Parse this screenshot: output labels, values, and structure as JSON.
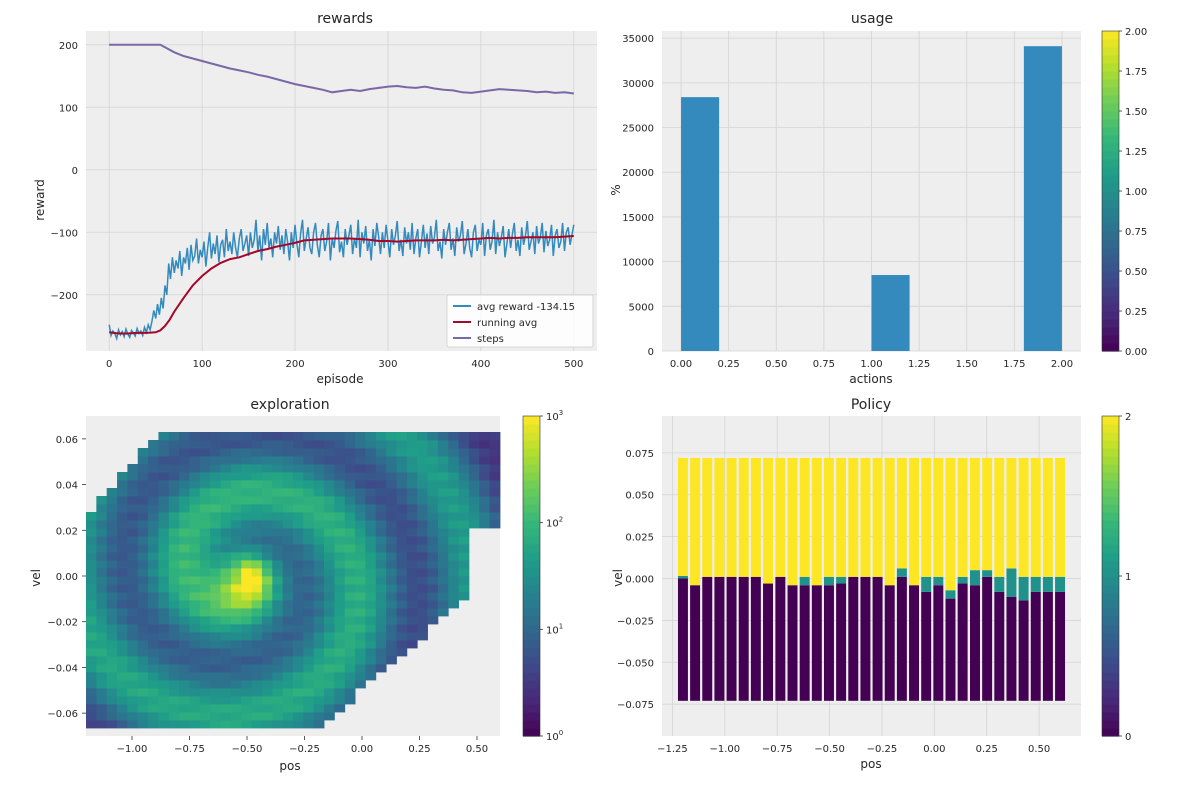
{
  "chart_data": [
    {
      "type": "line",
      "title": "rewards",
      "xlabel": "episode",
      "ylabel": "reward",
      "xlim": [
        -25,
        525
      ],
      "ylim": [
        -290,
        222
      ],
      "xticks": [
        0,
        100,
        200,
        300,
        400,
        500
      ],
      "yticks": [
        -200,
        -100,
        0,
        100,
        200
      ],
      "grid": true,
      "legend_position": "lower-right",
      "colors": {
        "avg_reward": "#348abd",
        "running_avg": "#a60628",
        "steps": "#7a68a6"
      },
      "series": [
        {
          "name": "avg reward -134.15",
          "key": "avg_reward",
          "x": [
            0,
            2,
            4,
            6,
            8,
            10,
            12,
            14,
            16,
            18,
            20,
            22,
            24,
            26,
            28,
            30,
            32,
            34,
            36,
            38,
            40,
            42,
            44,
            46,
            48,
            50,
            52,
            54,
            56,
            58,
            60,
            62,
            64,
            66,
            68,
            70,
            72,
            74,
            76,
            78,
            80,
            82,
            84,
            86,
            88,
            90,
            92,
            94,
            96,
            98,
            100,
            102,
            104,
            106,
            108,
            110,
            112,
            114,
            116,
            118,
            120,
            122,
            124,
            126,
            128,
            130,
            132,
            134,
            136,
            138,
            140,
            142,
            144,
            146,
            148,
            150,
            152,
            154,
            156,
            158,
            160,
            162,
            164,
            166,
            168,
            170,
            172,
            174,
            176,
            178,
            180,
            182,
            184,
            186,
            188,
            190,
            192,
            194,
            196,
            198,
            200,
            202,
            204,
            206,
            208,
            210,
            212,
            214,
            216,
            218,
            220,
            222,
            224,
            226,
            228,
            230,
            232,
            234,
            236,
            238,
            240,
            242,
            244,
            246,
            248,
            250,
            252,
            254,
            256,
            258,
            260,
            262,
            264,
            266,
            268,
            270,
            272,
            274,
            276,
            278,
            280,
            282,
            284,
            286,
            288,
            290,
            292,
            294,
            296,
            298,
            300,
            302,
            304,
            306,
            308,
            310,
            312,
            314,
            316,
            318,
            320,
            322,
            324,
            326,
            328,
            330,
            332,
            334,
            336,
            338,
            340,
            342,
            344,
            346,
            348,
            350,
            352,
            354,
            356,
            358,
            360,
            362,
            364,
            366,
            368,
            370,
            372,
            374,
            376,
            378,
            380,
            382,
            384,
            386,
            388,
            390,
            392,
            394,
            396,
            398,
            400,
            402,
            404,
            406,
            408,
            410,
            412,
            414,
            416,
            418,
            420,
            422,
            424,
            426,
            428,
            430,
            432,
            434,
            436,
            438,
            440,
            442,
            444,
            446,
            448,
            450,
            452,
            454,
            456,
            458,
            460,
            462,
            464,
            466,
            468,
            470,
            472,
            474,
            476,
            478,
            480,
            482,
            484,
            486,
            488,
            490,
            492,
            494,
            496,
            498,
            500
          ],
          "y": [
            -248,
            -265,
            -258,
            -262,
            -270,
            -256,
            -264,
            -259,
            -267,
            -255,
            -263,
            -268,
            -257,
            -261,
            -266,
            -254,
            -262,
            -258,
            -265,
            -252,
            -260,
            -248,
            -256,
            -242,
            -225,
            -238,
            -215,
            -232,
            -205,
            -222,
            -185,
            -200,
            -150,
            -175,
            -140,
            -165,
            -145,
            -158,
            -130,
            -170,
            -140,
            -150,
            -125,
            -160,
            -120,
            -145,
            -138,
            -110,
            -150,
            -128,
            -140,
            -115,
            -155,
            -125,
            -100,
            -142,
            -118,
            -135,
            -105,
            -148,
            -120,
            -112,
            -140,
            -95,
            -130,
            -115,
            -135,
            -100,
            -125,
            -140,
            -110,
            -95,
            -130,
            -118,
            -105,
            -138,
            -100,
            -125,
            -112,
            -80,
            -130,
            -105,
            -145,
            -95,
            -120,
            -85,
            -125,
            -110,
            -140,
            -100,
            -118,
            -90,
            -128,
            -105,
            -135,
            -95,
            -115,
            -145,
            -100,
            -125,
            -88,
            -118,
            -140,
            -102,
            -80,
            -130,
            -110,
            -92,
            -125,
            -135,
            -100,
            -85,
            -120,
            -140,
            -105,
            -95,
            -130,
            -115,
            -85,
            -145,
            -110,
            -125,
            -98,
            -82,
            -132,
            -115,
            -140,
            -95,
            -120,
            -105,
            -88,
            -135,
            -110,
            -125,
            -80,
            -140,
            -100,
            -118,
            -90,
            -130,
            -112,
            -145,
            -95,
            -122,
            -85,
            -108,
            -135,
            -100,
            -125,
            -88,
            -115,
            -140,
            -95,
            -120,
            -105,
            -82,
            -130,
            -112,
            -138,
            -92,
            -118,
            -100,
            -128,
            -85,
            -135,
            -110,
            -95,
            -140,
            -115,
            -88,
            -125,
            -102,
            -135,
            -90,
            -118,
            -108,
            -80,
            -130,
            -115,
            -142,
            -95,
            -120,
            -100,
            -85,
            -128,
            -110,
            -138,
            -92,
            -115,
            -105,
            -82,
            -135,
            -118,
            -95,
            -125,
            -140,
            -100,
            -88,
            -130,
            -112,
            -120,
            -85,
            -138,
            -105,
            -95,
            -128,
            -115,
            -80,
            -135,
            -100,
            -122,
            -108,
            -90,
            -140,
            -118,
            -95,
            -125,
            -102,
            -85,
            -130,
            -112,
            -138,
            -92,
            -120,
            -105,
            -82,
            -128,
            -115,
            -100,
            -135,
            -90,
            -118,
            -108,
            -85,
            -132,
            -98,
            -122,
            -112,
            -88,
            -138,
            -105,
            -95,
            -125,
            -115,
            -85,
            -130,
            -100,
            -92,
            -120,
            -105,
            -88
          ]
        },
        {
          "name": "running avg",
          "key": "running_avg",
          "x": [
            0,
            10,
            20,
            30,
            40,
            50,
            55,
            60,
            65,
            70,
            80,
            90,
            100,
            110,
            120,
            130,
            140,
            150,
            160,
            170,
            180,
            190,
            200,
            210,
            220,
            230,
            240,
            250,
            260,
            270,
            280,
            290,
            300,
            310,
            320,
            330,
            340,
            350,
            360,
            370,
            380,
            390,
            400,
            410,
            420,
            430,
            440,
            450,
            460,
            470,
            480,
            490,
            500
          ],
          "y": [
            -260,
            -262,
            -262,
            -261,
            -261,
            -260,
            -257,
            -250,
            -240,
            -227,
            -205,
            -185,
            -170,
            -158,
            -149,
            -143,
            -140,
            -135,
            -130,
            -127,
            -123,
            -120,
            -117,
            -113,
            -112,
            -111,
            -110,
            -110,
            -110,
            -111,
            -112,
            -114,
            -114,
            -115,
            -114,
            -113,
            -113,
            -113,
            -112,
            -113,
            -112,
            -111,
            -110,
            -109,
            -110,
            -109,
            -109,
            -108,
            -108,
            -108,
            -108,
            -107,
            -106
          ]
        },
        {
          "name": "steps",
          "key": "steps",
          "x": [
            0,
            20,
            40,
            55,
            60,
            70,
            80,
            90,
            100,
            110,
            120,
            130,
            140,
            150,
            160,
            170,
            180,
            190,
            200,
            210,
            220,
            230,
            240,
            250,
            260,
            270,
            280,
            290,
            300,
            310,
            320,
            330,
            340,
            350,
            360,
            370,
            380,
            390,
            400,
            410,
            420,
            430,
            440,
            450,
            460,
            470,
            480,
            490,
            500
          ],
          "y": [
            200,
            200,
            200,
            200,
            196,
            188,
            182,
            178,
            174,
            170,
            166,
            162,
            159,
            156,
            152,
            149,
            145,
            141,
            137,
            134,
            131,
            128,
            124,
            126,
            128,
            126,
            129,
            131,
            133,
            134,
            132,
            131,
            133,
            130,
            128,
            127,
            124,
            123,
            125,
            127,
            129,
            128,
            127,
            126,
            124,
            125,
            123,
            124,
            122
          ]
        }
      ]
    },
    {
      "type": "bar",
      "title": "usage",
      "xlabel": "actions",
      "ylabel": "%",
      "xlim": [
        -0.1,
        2.1
      ],
      "ylim": [
        0,
        35800
      ],
      "xticks": [
        "0.00",
        "0.25",
        "0.50",
        "0.75",
        "1.00",
        "1.25",
        "1.50",
        "1.75",
        "2.00"
      ],
      "yticks": [
        "0",
        "5000",
        "10000",
        "15000",
        "20000",
        "25000",
        "30000",
        "35000"
      ],
      "grid": true,
      "color": "#348abd",
      "bins": [
        {
          "x0": 0.0,
          "x1": 0.2,
          "value": 28400
        },
        {
          "x0": 1.0,
          "x1": 1.2,
          "value": 8500
        },
        {
          "x0": 1.8,
          "x1": 2.0,
          "value": 34100
        }
      ],
      "colorbar": {
        "colormap": "viridis",
        "ticks": [
          "0.00",
          "0.25",
          "0.50",
          "0.75",
          "1.00",
          "1.25",
          "1.50",
          "1.75",
          "2.00"
        ]
      }
    },
    {
      "type": "heatmap",
      "title": "exploration",
      "xlabel": "pos",
      "ylabel": "vel",
      "xlim": [
        -1.2,
        0.6
      ],
      "ylim": [
        -0.07,
        0.07
      ],
      "xticks": [
        "−1.00",
        "−0.75",
        "−0.50",
        "−0.25",
        "0.00",
        "0.25",
        "0.50"
      ],
      "xtick_values": [
        -1.0,
        -0.75,
        -0.5,
        -0.25,
        0.0,
        0.25,
        0.5
      ],
      "yticks": [
        "−0.06",
        "−0.04",
        "−0.02",
        "0.00",
        "0.02",
        "0.04",
        "0.06"
      ],
      "ytick_values": [
        -0.06,
        -0.04,
        -0.02,
        0.0,
        0.02,
        0.04,
        0.06
      ],
      "colormap": "viridis",
      "log_scale": true,
      "value_range": [
        1,
        1000
      ],
      "colorbar": {
        "ticks": [
          {
            "base": "10",
            "exp": "0"
          },
          {
            "base": "10",
            "exp": "1"
          },
          {
            "base": "10",
            "exp": "2"
          },
          {
            "base": "10",
            "exp": "3"
          }
        ]
      }
    },
    {
      "type": "bar",
      "title": "Policy",
      "xlabel": "pos",
      "ylabel": "vel",
      "xlim": [
        -1.3,
        0.7
      ],
      "ylim": [
        -0.094,
        0.097
      ],
      "xticks": [
        "−1.25",
        "−1.00",
        "−0.75",
        "−0.50",
        "−0.25",
        "0.00",
        "0.25",
        "0.50"
      ],
      "xtick_values": [
        -1.25,
        -1.0,
        -0.75,
        -0.5,
        -0.25,
        0.0,
        0.25,
        0.5
      ],
      "yticks": [
        "−0.075",
        "−0.050",
        "−0.025",
        "0.000",
        "0.025",
        "0.050",
        "0.075"
      ],
      "ytick_values": [
        -0.075,
        -0.05,
        -0.025,
        0.0,
        0.025,
        0.05,
        0.075
      ],
      "grid": true,
      "colormap": "viridis",
      "action_colors": {
        "0": "#440154",
        "1": "#21918c",
        "2": "#fde725"
      },
      "column_x": [
        -1.2,
        -1.142,
        -1.084,
        -1.026,
        -0.968,
        -0.91,
        -0.852,
        -0.794,
        -0.735,
        -0.677,
        -0.619,
        -0.561,
        -0.503,
        -0.445,
        -0.387,
        -0.329,
        -0.271,
        -0.213,
        -0.155,
        -0.097,
        -0.039,
        0.019,
        0.077,
        0.135,
        0.194,
        0.252,
        0.31,
        0.368,
        0.426,
        0.484,
        0.542,
        0.6
      ],
      "column_split": [
        [
          0.0,
          0.0015
        ],
        [
          -0.004,
          -0.004
        ],
        [
          0.001,
          0.001
        ],
        [
          0.001,
          0.001
        ],
        [
          0.001,
          0.001
        ],
        [
          0.001,
          0.001
        ],
        [
          0.001,
          0.001
        ],
        [
          -0.003,
          -0.003
        ],
        [
          0.001,
          0.001
        ],
        [
          -0.004,
          -0.004
        ],
        [
          -0.004,
          0.001
        ],
        [
          -0.004,
          -0.004
        ],
        [
          -0.004,
          0.001
        ],
        [
          -0.003,
          0.001
        ],
        [
          0.001,
          0.001
        ],
        [
          0.001,
          0.001
        ],
        [
          0.001,
          0.001
        ],
        [
          -0.004,
          -0.004
        ],
        [
          0.001,
          0.006
        ],
        [
          -0.004,
          -0.004
        ],
        [
          -0.008,
          0.001
        ],
        [
          -0.004,
          0.001
        ],
        [
          -0.012,
          -0.007
        ],
        [
          -0.003,
          0.001
        ],
        [
          -0.004,
          0.005
        ],
        [
          0.001,
          0.005
        ],
        [
          -0.008,
          0.001
        ],
        [
          -0.011,
          0.006
        ],
        [
          -0.013,
          0.001
        ],
        [
          -0.008,
          0.001
        ],
        [
          -0.008,
          0.001
        ],
        [
          -0.008,
          0.001
        ]
      ],
      "v_min": -0.073,
      "v_max": 0.072,
      "colorbar": {
        "ticks": [
          "0",
          "1",
          "2"
        ]
      }
    }
  ]
}
